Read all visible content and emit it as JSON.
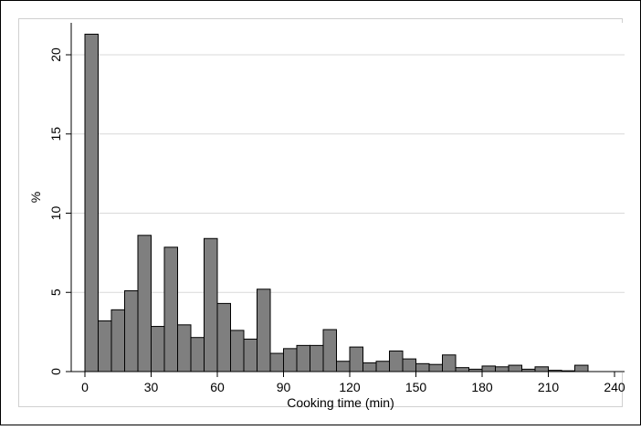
{
  "chart_data": {
    "type": "bar",
    "title": "",
    "xlabel": "Cooking time (min)",
    "ylabel": "%",
    "xlim": [
      -3,
      246
    ],
    "ylim": [
      0,
      22.5
    ],
    "x_ticks": [
      0,
      30,
      60,
      90,
      120,
      150,
      180,
      210,
      240
    ],
    "y_ticks": [
      0,
      5,
      10,
      15,
      20
    ],
    "grid": "horizontal",
    "legend": "none",
    "bin_width": 6,
    "bins": [
      {
        "x0": 0,
        "value": 21.3
      },
      {
        "x0": 6,
        "value": 3.2
      },
      {
        "x0": 12,
        "value": 3.9
      },
      {
        "x0": 18,
        "value": 5.1
      },
      {
        "x0": 24,
        "value": 8.6
      },
      {
        "x0": 30,
        "value": 2.85
      },
      {
        "x0": 36,
        "value": 7.85
      },
      {
        "x0": 42,
        "value": 2.95
      },
      {
        "x0": 48,
        "value": 2.15
      },
      {
        "x0": 54,
        "value": 8.4
      },
      {
        "x0": 60,
        "value": 4.3
      },
      {
        "x0": 66,
        "value": 2.6
      },
      {
        "x0": 72,
        "value": 2.05
      },
      {
        "x0": 78,
        "value": 5.2
      },
      {
        "x0": 84,
        "value": 1.15
      },
      {
        "x0": 90,
        "value": 1.45
      },
      {
        "x0": 96,
        "value": 1.65
      },
      {
        "x0": 102,
        "value": 1.65
      },
      {
        "x0": 108,
        "value": 2.65
      },
      {
        "x0": 114,
        "value": 0.65
      },
      {
        "x0": 120,
        "value": 1.55
      },
      {
        "x0": 126,
        "value": 0.55
      },
      {
        "x0": 132,
        "value": 0.65
      },
      {
        "x0": 138,
        "value": 1.3
      },
      {
        "x0": 144,
        "value": 0.8
      },
      {
        "x0": 150,
        "value": 0.5
      },
      {
        "x0": 156,
        "value": 0.45
      },
      {
        "x0": 162,
        "value": 1.05
      },
      {
        "x0": 168,
        "value": 0.25
      },
      {
        "x0": 174,
        "value": 0.15
      },
      {
        "x0": 180,
        "value": 0.35
      },
      {
        "x0": 186,
        "value": 0.3
      },
      {
        "x0": 192,
        "value": 0.4
      },
      {
        "x0": 198,
        "value": 0.15
      },
      {
        "x0": 204,
        "value": 0.3
      },
      {
        "x0": 210,
        "value": 0.08
      },
      {
        "x0": 216,
        "value": 0.05
      },
      {
        "x0": 222,
        "value": 0.4
      }
    ],
    "colors": {
      "bar_fill": "#7f7f7f",
      "bar_stroke": "#000000",
      "grid": "#d9d9d9",
      "axis": "#000000",
      "frame": "#000000"
    }
  }
}
